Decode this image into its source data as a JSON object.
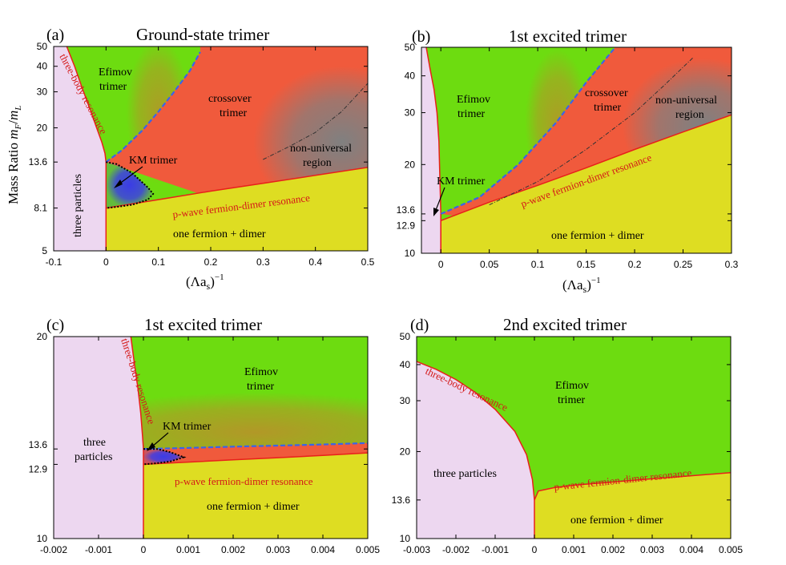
{
  "colors": {
    "efimov": "#6ddc10",
    "crossover": "#f05a3c",
    "nonuniversal": "#808080",
    "km": "#3b3ce6",
    "fermion_dimer": "#dedd22",
    "three_particles": "#edd7f0",
    "resonance_line": "#e8201a",
    "km_boundary": "#000000",
    "crossover_boundary": "#3a64e8"
  },
  "y_axis_label": "Mass Ratio m_F/m_L",
  "chart_data": [
    {
      "type": "heatmap",
      "panel": "(a)",
      "title": "Ground-state trimer",
      "xlabel": "(Λa_s)^-1",
      "xlim": [
        -0.1,
        0.5
      ],
      "ylim": [
        5,
        50
      ],
      "y_scale": "log",
      "xticks": [
        "-0.1",
        "0",
        "0.1",
        "0.2",
        "0.3",
        "0.4",
        "0.5"
      ],
      "xtick_values": [
        -0.1,
        0,
        0.1,
        0.2,
        0.3,
        0.4,
        0.5
      ],
      "yticks": [
        "5",
        "8.1",
        "13.6",
        "20",
        "30",
        "40",
        "50"
      ],
      "ytick_values": [
        5,
        8.1,
        13.6,
        20,
        30,
        40,
        50
      ],
      "regions": [
        "Efimov trimer",
        "crossover trimer",
        "KM trimer",
        "non-universal region",
        "three particles",
        "one fermion + dimer"
      ],
      "curves": [
        {
          "name": "three-body resonance",
          "x": [
            -0.075,
            -0.06,
            -0.045,
            -0.03,
            -0.018,
            -0.008,
            -0.002,
            0
          ],
          "y": [
            50,
            40,
            31,
            24.5,
            20,
            17,
            15,
            13.6
          ]
        },
        {
          "name": "p-wave fermion-dimer resonance",
          "x": [
            0,
            0.1,
            0.2,
            0.3,
            0.4,
            0.5
          ],
          "y": [
            8.1,
            8.9,
            9.8,
            10.7,
            11.7,
            12.8
          ]
        },
        {
          "name": "crossover boundary",
          "x": [
            0,
            0.03,
            0.07,
            0.1,
            0.13,
            0.16,
            0.18
          ],
          "y": [
            13.6,
            15.5,
            19.5,
            24,
            30,
            38,
            47
          ]
        },
        {
          "name": "KM boundary",
          "x": [
            0,
            0.02,
            0.05,
            0.08,
            0.09,
            0.08,
            0.05,
            0.02,
            0
          ],
          "y": [
            13.6,
            13.3,
            12,
            10.2,
            9.5,
            8.9,
            8.4,
            8.2,
            8.1
          ]
        },
        {
          "name": "non-universal boundary",
          "x": [
            0.3,
            0.35,
            0.4,
            0.45,
            0.5
          ],
          "y": [
            14,
            16.2,
            19,
            24,
            33
          ]
        }
      ]
    },
    {
      "type": "heatmap",
      "panel": "(b)",
      "title": "1st excited trimer",
      "xlabel": "(Λa_s)^-1",
      "xlim": [
        -0.02,
        0.3
      ],
      "ylim": [
        10,
        50
      ],
      "y_scale": "log",
      "xticks": [
        "0",
        "0.05",
        "0.1",
        "0.15",
        "0.2",
        "0.25",
        "0.3"
      ],
      "xtick_values": [
        0,
        0.05,
        0.1,
        0.15,
        0.2,
        0.25,
        0.3
      ],
      "yticks": [
        "10",
        "12.9",
        "13.6",
        "20",
        "30",
        "40",
        "50"
      ],
      "ytick_values": [
        10,
        12.9,
        13.6,
        20,
        30,
        40,
        50
      ],
      "regions": [
        "Efimov trimer",
        "crossover trimer",
        "KM trimer",
        "non-universal region",
        "one fermion + dimer"
      ],
      "curves": [
        {
          "name": "three-body resonance",
          "x": [
            -0.015,
            -0.011,
            -0.007,
            -0.004,
            -0.002,
            -0.001,
            0
          ],
          "y": [
            50,
            42,
            36,
            30,
            24,
            18,
            13.6
          ]
        },
        {
          "name": "p-wave fermion-dimer resonance",
          "x": [
            0,
            0.05,
            0.1,
            0.15,
            0.2,
            0.25,
            0.3
          ],
          "y": [
            12.9,
            14.9,
            17,
            19.5,
            22.5,
            25.8,
            29.5
          ]
        },
        {
          "name": "crossover boundary",
          "x": [
            0,
            0.04,
            0.08,
            0.12,
            0.15,
            0.18
          ],
          "y": [
            13.6,
            15.5,
            20,
            28,
            38,
            50
          ]
        },
        {
          "name": "non-universal boundary",
          "x": [
            0.05,
            0.1,
            0.15,
            0.2,
            0.23,
            0.26
          ],
          "y": [
            14.6,
            17.5,
            22.5,
            30,
            37,
            46
          ]
        }
      ]
    },
    {
      "type": "heatmap",
      "panel": "(c)",
      "title": "1st excited trimer",
      "xlabel": "",
      "xlim": [
        -0.002,
        0.005
      ],
      "ylim": [
        10,
        20
      ],
      "y_scale": "log",
      "xticks": [
        "-0.002",
        "-0.001",
        "0",
        "0.001",
        "0.002",
        "0.003",
        "0.004",
        "0.005"
      ],
      "xtick_values": [
        -0.002,
        -0.001,
        0,
        0.001,
        0.002,
        0.003,
        0.004,
        0.005
      ],
      "yticks": [
        "10",
        "12.9",
        "13.6",
        "20"
      ],
      "ytick_values": [
        10,
        12.9,
        13.6,
        20
      ],
      "regions": [
        "Efimov trimer",
        "KM trimer",
        "three particles",
        "one fermion + dimer"
      ],
      "curves": [
        {
          "name": "three-body resonance",
          "x": [
            -0.00028,
            -0.0002,
            -0.00012,
            -6e-05,
            -2e-05,
            0
          ],
          "y": [
            20,
            18.2,
            16.7,
            15.4,
            14.2,
            13.6
          ]
        },
        {
          "name": "p-wave fermion-dimer resonance",
          "x": [
            0,
            0.001,
            0.002,
            0.003,
            0.004,
            0.005
          ],
          "y": [
            12.9,
            13.0,
            13.1,
            13.2,
            13.3,
            13.42
          ]
        },
        {
          "name": "crossover boundary",
          "x": [
            0,
            0.001,
            0.002,
            0.003,
            0.004,
            0.005
          ],
          "y": [
            13.6,
            13.65,
            13.71,
            13.76,
            13.81,
            13.88
          ]
        },
        {
          "name": "KM boundary",
          "x": [
            0,
            0.0003,
            0.0006,
            0.0009,
            0.0006,
            0.0003,
            0
          ],
          "y": [
            13.6,
            13.6,
            13.45,
            13.22,
            13.03,
            12.95,
            12.9
          ]
        }
      ]
    },
    {
      "type": "heatmap",
      "panel": "(d)",
      "title": "2nd excited trimer",
      "xlabel": "",
      "xlim": [
        -0.003,
        0.005
      ],
      "ylim": [
        10,
        50
      ],
      "y_scale": "log",
      "xticks": [
        "-0.003",
        "-0.002",
        "-0.001",
        "0",
        "0.001",
        "0.002",
        "0.003",
        "0.004",
        "0.005"
      ],
      "xtick_values": [
        -0.003,
        -0.002,
        -0.001,
        0,
        0.001,
        0.002,
        0.003,
        0.004,
        0.005
      ],
      "yticks": [
        "10",
        "13.6",
        "20",
        "30",
        "40",
        "50"
      ],
      "ytick_values": [
        10,
        13.6,
        20,
        30,
        40,
        50
      ],
      "regions": [
        "Efimov trimer",
        "three particles",
        "one fermion + dimer"
      ],
      "curves": [
        {
          "name": "three-body resonance",
          "x": [
            -0.003,
            -0.0025,
            -0.002,
            -0.0015,
            -0.001,
            -0.0005,
            -0.0002,
            -5e-05,
            0
          ],
          "y": [
            41,
            38.5,
            35.5,
            32,
            28,
            23.5,
            19.5,
            16,
            13.6
          ]
        },
        {
          "name": "p-wave fermion-dimer resonance",
          "x": [
            0,
            0.0001,
            0.0005,
            0.001,
            0.002,
            0.003,
            0.004,
            0.005
          ],
          "y": [
            13.6,
            14.6,
            15,
            15.3,
            15.7,
            16.1,
            16.5,
            16.9
          ]
        }
      ]
    }
  ],
  "labels": {
    "a": {
      "panel": "(a)",
      "title": "Ground-state trimer",
      "efimov": [
        "Efimov",
        "trimer"
      ],
      "crossover": [
        "crossover",
        "trimer"
      ],
      "km": "KM trimer",
      "nonuniv": [
        "non-universal",
        "region"
      ],
      "three": "three particles",
      "fdimer": "one fermion + dimer",
      "tbr": "three-body resonance",
      "pwave": "p-wave fermion-dimer resonance",
      "xlabel": "(Λa",
      "xlabel_sub": "s",
      "xlabel_tail": ")",
      "xlabel_sup": "−1"
    },
    "b": {
      "panel": "(b)",
      "title": "1st excited trimer",
      "efimov": [
        "Efimov",
        "trimer"
      ],
      "crossover": [
        "crossover",
        "trimer"
      ],
      "km": "KM trimer",
      "nonuniv": [
        "non-universal",
        "region"
      ],
      "fdimer": "one fermion + dimer",
      "pwave": "p-wave fermion-dimer resonance",
      "xlabel": "(Λa",
      "xlabel_sub": "s",
      "xlabel_tail": ")",
      "xlabel_sup": "−1"
    },
    "c": {
      "panel": "(c)",
      "title": "1st excited trimer",
      "efimov": [
        "Efimov",
        "trimer"
      ],
      "km": "KM trimer",
      "three": [
        "three",
        "particles"
      ],
      "fdimer": "one fermion + dimer",
      "tbr": "three-body resonance",
      "pwave": "p-wave fermion-dimer resonance"
    },
    "d": {
      "panel": "(d)",
      "title": "2nd excited trimer",
      "efimov": [
        "Efimov",
        "trimer"
      ],
      "three": "three particles",
      "fdimer": "one fermion + dimer",
      "tbr": "three-body resonance",
      "pwave": "p-wave fermion-dimer resonance"
    }
  }
}
